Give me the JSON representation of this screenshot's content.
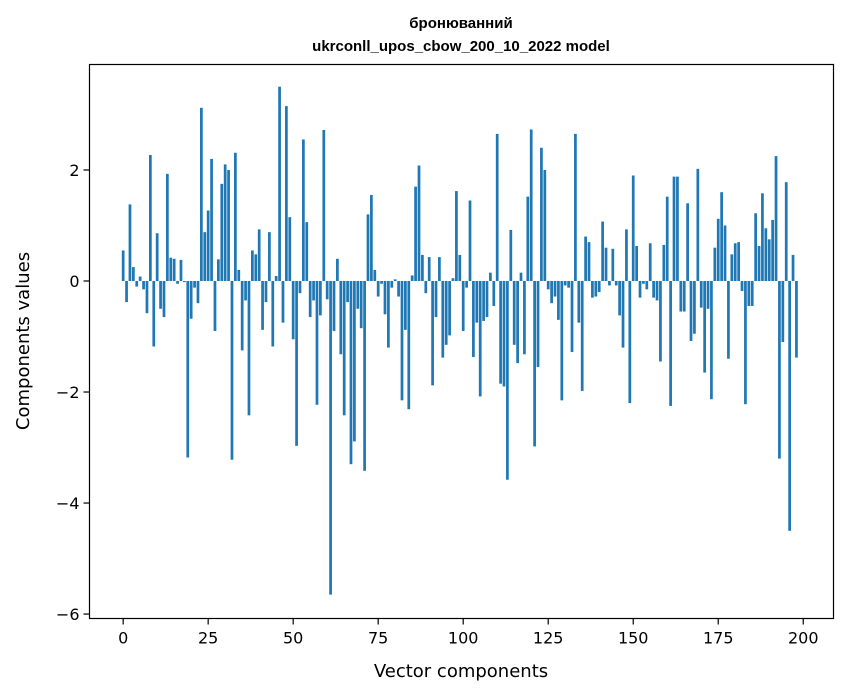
{
  "chart_data": {
    "type": "bar",
    "title": "бронюванний",
    "subtitle": "ukrconll_upos_cbow_200_10_2022 model",
    "xlabel": "Vector components",
    "ylabel": "Components values",
    "xlim": [
      -9.9,
      208.9
    ],
    "ylim": [
      -6.08,
      3.9
    ],
    "xticks": [
      0,
      25,
      50,
      75,
      100,
      125,
      150,
      175,
      200
    ],
    "xtick_labels": [
      "0",
      "25",
      "50",
      "75",
      "100",
      "125",
      "150",
      "175",
      "200"
    ],
    "yticks": [
      -6,
      -4,
      -2,
      0,
      2
    ],
    "ytick_labels": [
      "−6",
      "−4",
      "−2",
      "0",
      "2"
    ],
    "bar_color": "#1f77b4",
    "grid": false,
    "legend": "none",
    "values": [
      0.55,
      -0.38,
      1.38,
      0.25,
      -0.1,
      0.08,
      -0.15,
      -0.58,
      2.27,
      -1.18,
      0.86,
      -0.5,
      -0.65,
      1.93,
      0.42,
      0.4,
      -0.05,
      0.38,
      -0.02,
      -3.18,
      -0.68,
      -0.12,
      -0.4,
      3.12,
      0.88,
      1.27,
      2.2,
      -0.9,
      0.39,
      1.75,
      2.1,
      2.0,
      -3.22,
      2.31,
      0.2,
      -1.25,
      -0.35,
      -2.42,
      0.55,
      0.48,
      0.93,
      -0.88,
      -0.38,
      0.88,
      -1.18,
      0.09,
      3.5,
      -0.75,
      3.15,
      1.15,
      -1.05,
      -2.97,
      -0.22,
      2.55,
      1.06,
      -0.65,
      -0.35,
      -2.23,
      -0.62,
      2.72,
      -0.33,
      -5.65,
      -0.9,
      0.4,
      -1.32,
      -2.42,
      -0.38,
      -3.3,
      -2.89,
      -0.5,
      -0.85,
      -3.42,
      1.2,
      1.55,
      0.2,
      -0.28,
      -0.05,
      -0.6,
      -1.2,
      -0.12,
      0.03,
      -0.28,
      -2.15,
      -0.88,
      -2.31,
      0.1,
      1.7,
      2.08,
      0.47,
      -0.22,
      0.43,
      -1.88,
      -0.65,
      0.43,
      -1.38,
      -1.15,
      -0.98,
      0.05,
      1.62,
      0.47,
      -0.9,
      -0.12,
      1.45,
      -1.37,
      -0.75,
      -2.08,
      -0.72,
      -0.65,
      0.15,
      -0.45,
      2.65,
      -1.85,
      -1.9,
      -3.58,
      0.92,
      -1.15,
      -1.48,
      0.15,
      -1.32,
      1.52,
      2.73,
      -2.98,
      -1.55,
      2.4,
      2.0,
      -0.15,
      -0.4,
      -0.28,
      -0.7,
      -2.15,
      -0.08,
      -0.12,
      -1.28,
      2.65,
      -0.75,
      -1.98,
      0.8,
      0.7,
      -0.3,
      -0.28,
      -0.2,
      1.07,
      0.6,
      -0.08,
      0.58,
      -0.08,
      -0.62,
      -1.2,
      0.93,
      -2.2,
      1.9,
      0.63,
      -0.3,
      -0.05,
      -0.15,
      0.68,
      -0.3,
      -0.35,
      -1.45,
      0.65,
      1.52,
      -2.25,
      1.88,
      1.88,
      -0.55,
      -0.55,
      1.4,
      -1.08,
      -0.95,
      2.02,
      -0.48,
      -1.65,
      -0.5,
      -2.13,
      0.6,
      1.12,
      1.6,
      1.0,
      -1.4,
      0.48,
      0.68,
      0.7,
      -0.18,
      -2.22,
      -0.45,
      -0.45,
      1.22,
      0.63,
      1.58,
      0.95,
      0.75,
      1.1,
      2.25,
      -3.2,
      -1.1,
      1.78,
      -4.5,
      0.47,
      -1.38
    ]
  }
}
